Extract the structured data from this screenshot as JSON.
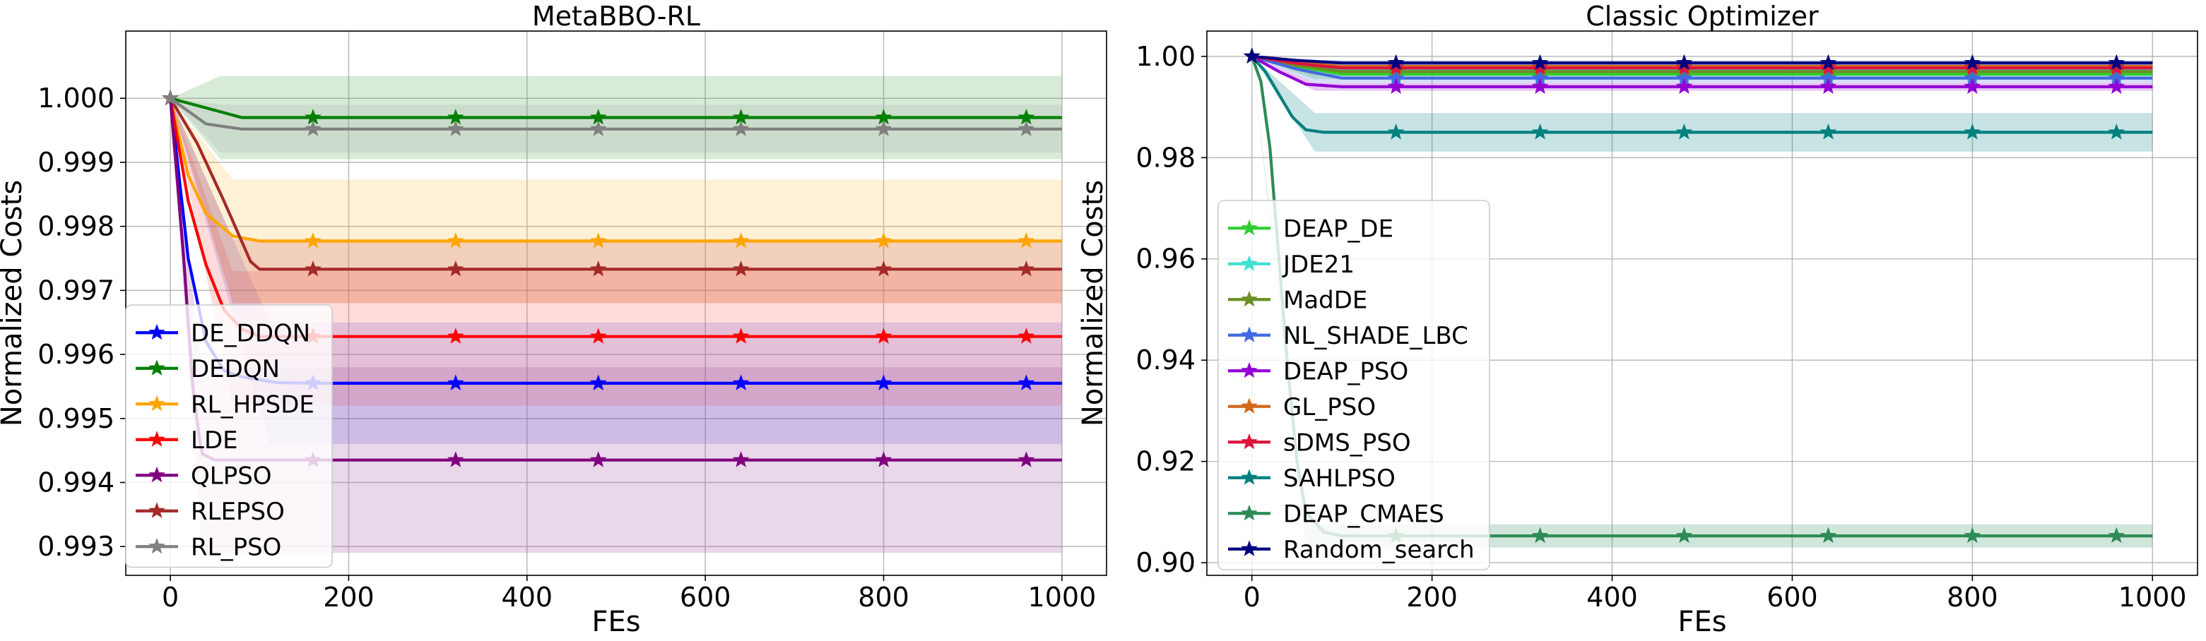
{
  "chart_data": [
    {
      "type": "line",
      "title": "MetaBBO-RL",
      "xlabel": "FEs",
      "ylabel": "Normalized Costs",
      "xlim": [
        -50,
        1050
      ],
      "ylim": [
        0.99255,
        1.00105
      ],
      "xticks": [
        0,
        200,
        400,
        600,
        800,
        1000
      ],
      "yticks": [
        0.993,
        0.994,
        0.995,
        0.996,
        0.997,
        0.998,
        0.999,
        1.0
      ],
      "ytick_labels": [
        "0.993",
        "0.994",
        "0.995",
        "0.996",
        "0.997",
        "0.998",
        "0.999",
        "1.000"
      ],
      "marker_x": [
        0,
        160,
        320,
        480,
        640,
        800,
        960
      ],
      "grid": true,
      "legend_position": "lower-left",
      "series": [
        {
          "name": "DE_DDQN",
          "color": "#0000ff",
          "band_color": "#4f4ff0",
          "x": [
            0,
            20,
            40,
            60,
            80,
            120,
            160,
            1000
          ],
          "y": [
            1.0,
            0.9975,
            0.9962,
            0.99575,
            0.99565,
            0.99556,
            0.99555,
            0.99555
          ],
          "band": [
            0.9946,
            0.9965
          ]
        },
        {
          "name": "DEDQN",
          "color": "#008000",
          "band_color": "#3a9a3a",
          "x": [
            0,
            40,
            80,
            1000
          ],
          "y": [
            1.0,
            0.99985,
            0.9997,
            0.9997
          ],
          "band": [
            0.99905,
            1.00035
          ]
        },
        {
          "name": "RL_HPSDE",
          "color": "#ffa500",
          "band_color": "#ffb732",
          "x": [
            0,
            20,
            40,
            70,
            100,
            1000
          ],
          "y": [
            1.0,
            0.9988,
            0.9982,
            0.99785,
            0.99777,
            0.99777
          ],
          "band": [
            0.9968,
            0.99873
          ]
        },
        {
          "name": "LDE",
          "color": "#ff0000",
          "band_color": "#ff4d4d",
          "x": [
            0,
            20,
            40,
            60,
            80,
            100,
            1000
          ],
          "y": [
            1.0,
            0.9984,
            0.9974,
            0.9967,
            0.9964,
            0.99628,
            0.99628
          ],
          "band": [
            0.9952,
            0.9973
          ]
        },
        {
          "name": "QLPSO",
          "color": "#800080",
          "band_color": "#9c4c9c",
          "x": [
            0,
            15,
            25,
            35,
            50,
            1000
          ],
          "y": [
            1.0,
            0.9975,
            0.9955,
            0.99445,
            0.99435,
            0.99435
          ],
          "band": [
            0.9929,
            0.9958
          ]
        },
        {
          "name": "RLEPSO",
          "color": "#a52a2a",
          "band_color": "#c05050",
          "x": [
            0,
            30,
            60,
            90,
            100,
            1000
          ],
          "y": [
            1.0,
            0.9993,
            0.9984,
            0.99745,
            0.99733,
            0.99733
          ],
          "band": [
            0.9968,
            0.9978
          ]
        },
        {
          "name": "RL_PSO",
          "color": "#808080",
          "band_color": "#a0a0a0",
          "x": [
            0,
            40,
            80,
            1000
          ],
          "y": [
            1.0,
            0.9996,
            0.99952,
            0.99952
          ],
          "band": [
            0.99915,
            0.9999
          ]
        }
      ]
    },
    {
      "type": "line",
      "title": "Classic Optimizer",
      "xlabel": "FEs",
      "ylabel": "Normalized Costs",
      "xlim": [
        -50,
        1050
      ],
      "ylim": [
        0.8975,
        1.005
      ],
      "xticks": [
        0,
        200,
        400,
        600,
        800,
        1000
      ],
      "yticks": [
        0.9,
        0.92,
        0.94,
        0.96,
        0.98,
        1.0
      ],
      "ytick_labels": [
        "0.90",
        "0.92",
        "0.94",
        "0.96",
        "0.98",
        "1.00"
      ],
      "marker_x": [
        0,
        160,
        320,
        480,
        640,
        800,
        960
      ],
      "grid": true,
      "legend_position": "center-left",
      "series": [
        {
          "name": "DEAP_DE",
          "color": "#32cd32",
          "x": [
            0,
            50,
            100,
            1000
          ],
          "y": [
            1.0,
            0.998,
            0.9965,
            0.9965
          ],
          "band": [
            0.9955,
            0.9975
          ]
        },
        {
          "name": "JDE21",
          "color": "#40e0d0",
          "x": [
            0,
            50,
            100,
            1000
          ],
          "y": [
            1.0,
            0.9985,
            0.9975,
            0.9975
          ],
          "band": [
            0.9968,
            0.9982
          ]
        },
        {
          "name": "MadDE",
          "color": "#6b8e23",
          "x": [
            0,
            50,
            100,
            1000
          ],
          "y": [
            1.0,
            0.9982,
            0.997,
            0.997
          ],
          "band": [
            0.9962,
            0.9978
          ]
        },
        {
          "name": "NL_SHADE_LBC",
          "color": "#4169e1",
          "x": [
            0,
            50,
            100,
            1000
          ],
          "y": [
            1.0,
            0.9975,
            0.9957,
            0.9957
          ],
          "band": [
            0.9948,
            0.9966
          ]
        },
        {
          "name": "DEAP_PSO",
          "color": "#9400d3",
          "x": [
            0,
            30,
            60,
            100,
            1000
          ],
          "y": [
            1.0,
            0.997,
            0.9945,
            0.994,
            0.994
          ],
          "band": [
            0.9932,
            0.9948
          ]
        },
        {
          "name": "GL_PSO",
          "color": "#d2691e",
          "x": [
            0,
            50,
            100,
            1000
          ],
          "y": [
            1.0,
            0.9988,
            0.998,
            0.998
          ],
          "band": [
            0.9975,
            0.9985
          ]
        },
        {
          "name": "sDMS_PSO",
          "color": "#dc143c",
          "x": [
            0,
            50,
            100,
            1000
          ],
          "y": [
            1.0,
            0.9986,
            0.9977,
            0.9977
          ],
          "band": [
            0.9972,
            0.9982
          ]
        },
        {
          "name": "SAHLPSO",
          "color": "#008080",
          "x": [
            0,
            15,
            30,
            45,
            60,
            80,
            100,
            1000
          ],
          "y": [
            1.0,
            0.997,
            0.9925,
            0.988,
            0.9855,
            0.985,
            0.985,
            0.985
          ],
          "band": [
            0.9812,
            0.9888
          ]
        },
        {
          "name": "DEAP_CMAES",
          "color": "#2e8b57",
          "x": [
            0,
            10,
            20,
            30,
            40,
            50,
            60,
            80,
            100,
            1000
          ],
          "y": [
            1.0,
            0.995,
            0.982,
            0.96,
            0.938,
            0.92,
            0.91,
            0.906,
            0.9053,
            0.9053
          ],
          "band": [
            0.903,
            0.9076
          ]
        },
        {
          "name": "Random_search",
          "color": "#000080",
          "x": [
            0,
            50,
            100,
            1000
          ],
          "y": [
            1.0,
            0.9992,
            0.9987,
            0.9987
          ],
          "band": [
            0.9982,
            0.9992
          ]
        }
      ]
    }
  ]
}
